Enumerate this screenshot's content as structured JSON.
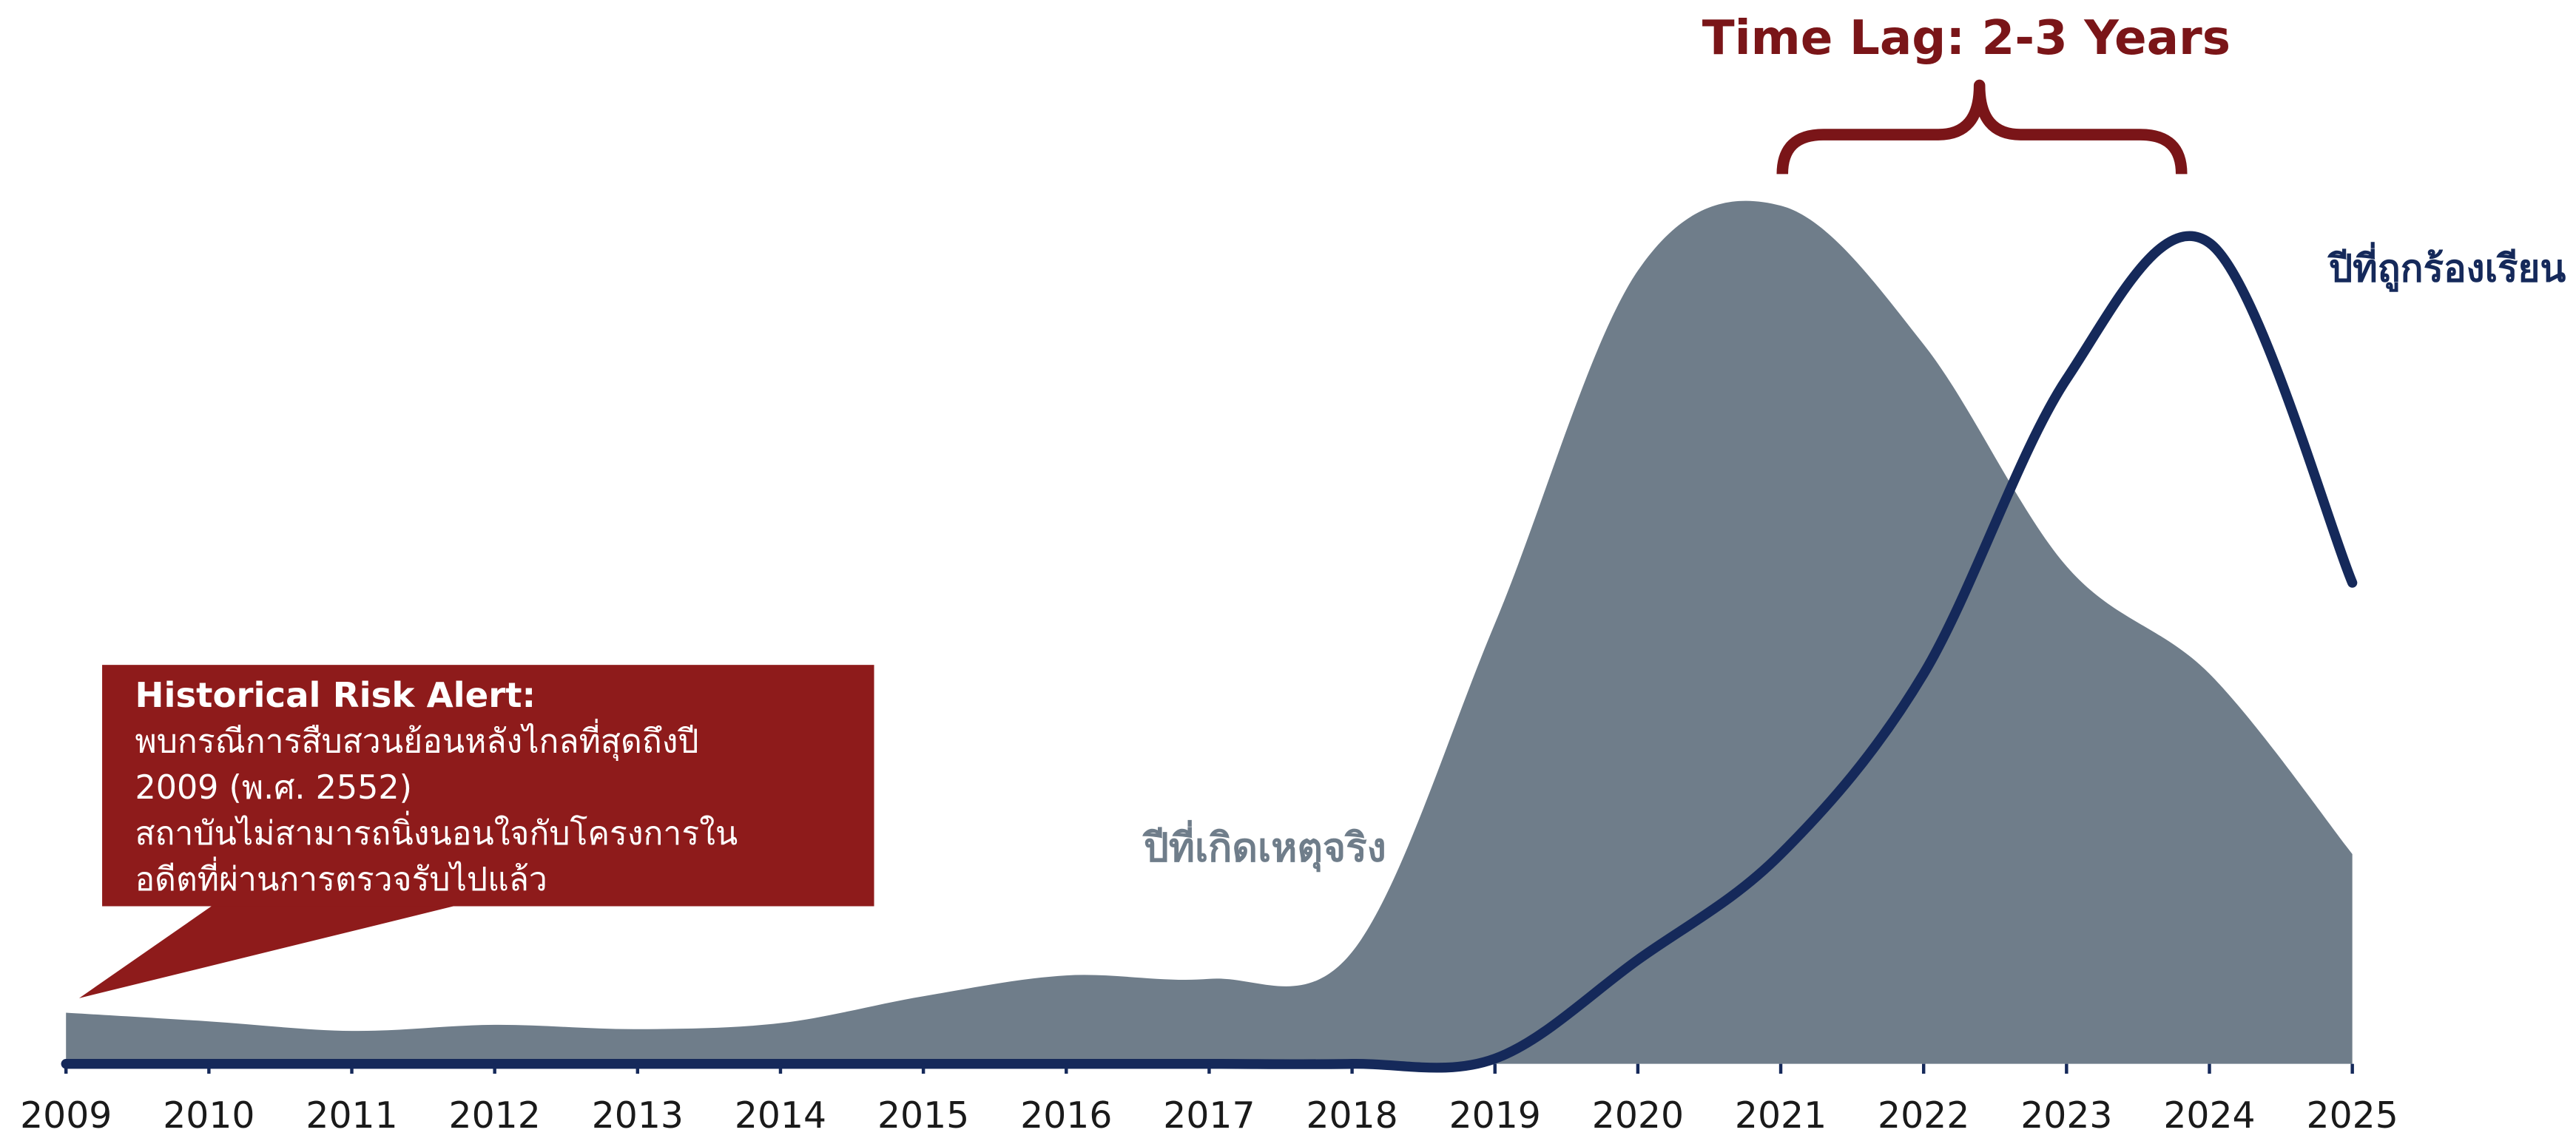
{
  "chart_data": {
    "type": "area_line",
    "title": "Time Lag: 2-3 Years",
    "x": [
      2009,
      2010,
      2011,
      2012,
      2013,
      2014,
      2015,
      2016,
      2017,
      2018,
      2019,
      2020,
      2021,
      2022,
      2023,
      2024,
      2025
    ],
    "xlim": [
      2009,
      2025
    ],
    "xticks": [
      2009,
      2010,
      2011,
      2012,
      2013,
      2014,
      2015,
      2016,
      2017,
      2018,
      2019,
      2020,
      2021,
      2022,
      2023,
      2024,
      2025
    ],
    "ylim": [
      0,
      100
    ],
    "series": [
      {
        "name": "ปีที่เกิดเหตุจริง",
        "color": "#6f7d8a",
        "kind": "area",
        "values": [
          5.9,
          4.9,
          3.8,
          4.5,
          4,
          4.7,
          7.8,
          10.2,
          9.8,
          12.9,
          50.8,
          91.5,
          99,
          83,
          57.4,
          45,
          24.2
        ]
      },
      {
        "name": "ปีที่ถูกร้องเรียน",
        "color": "#15295a",
        "kind": "line",
        "values": [
          0,
          0,
          0,
          0,
          0,
          0,
          0,
          0,
          0,
          0,
          0.6,
          12,
          24.2,
          45,
          79,
          94.7,
          55.5
        ]
      }
    ],
    "annotation": {
      "title": "Historical Risk Alert:",
      "lines": [
        "พบกรณีการสืบสวนย้อนหลังไกลที่สุดถึงปี",
        "2009 (พ.ศ. 2552)",
        "สถาบันไม่สามารถนิ่งนอนใจกับโครงการใน",
        "อดีตที่ผ่านการตรวจรับไปแล้ว"
      ],
      "color": "#8e1b1b"
    }
  }
}
